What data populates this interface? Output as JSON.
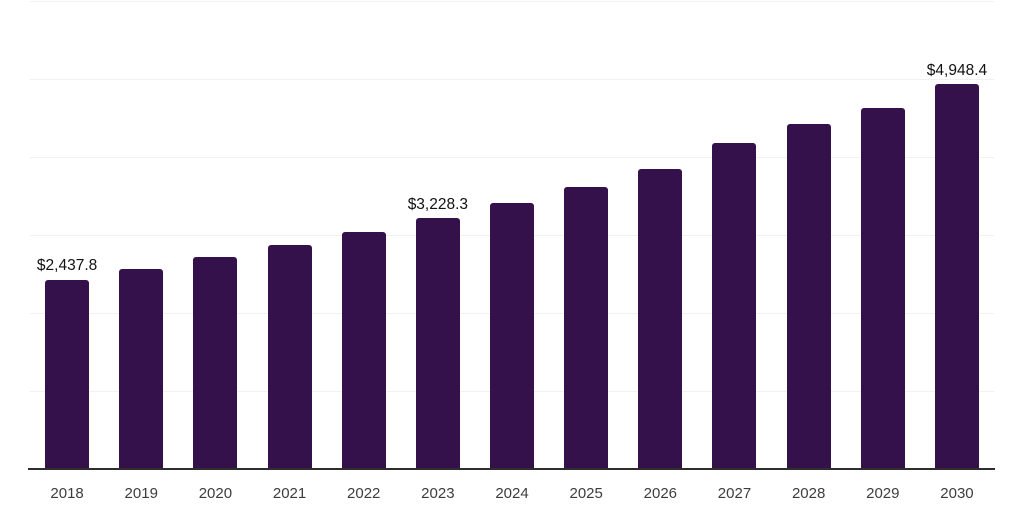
{
  "chart_data": {
    "type": "bar",
    "title": "",
    "categories": [
      "2018",
      "2019",
      "2020",
      "2021",
      "2022",
      "2023",
      "2024",
      "2025",
      "2026",
      "2027",
      "2028",
      "2029",
      "2030"
    ],
    "values": [
      2437.8,
      2578,
      2727,
      2885,
      3052,
      3228.3,
      3420,
      3630,
      3860,
      4190,
      4435,
      4645,
      4948.4
    ],
    "data_labels": {
      "2018": "$2,437.8",
      "2023": "$3,228.3",
      "2030": "$4,948.4"
    },
    "xlabel": "",
    "ylabel": "",
    "ylim": [
      0,
      6000
    ],
    "gridline_step": 1000,
    "grid": "horizontal",
    "legend": "none",
    "y_tick_labels_visible": false,
    "colors": {
      "bar": "#35114B",
      "gridline": "#f1f1f1",
      "axis_line": "#2e2e2e",
      "tick_label": "#3d3d3d",
      "data_label": "#111111",
      "background": "#ffffff"
    }
  }
}
